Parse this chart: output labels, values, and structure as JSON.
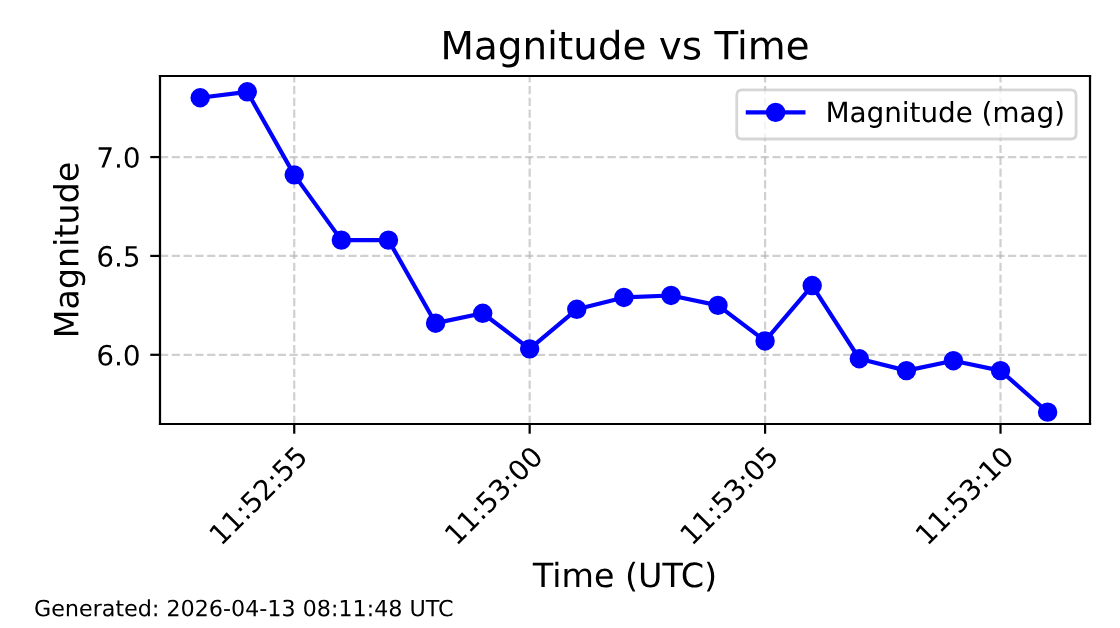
{
  "chart_data": {
    "type": "line",
    "title": "Magnitude vs Time",
    "xlabel": "Time (UTC)",
    "ylabel": "Magnitude",
    "x": [
      11.881389,
      11.881667,
      11.881944,
      11.882222,
      11.8825,
      11.882778,
      11.883056,
      11.883333,
      11.883611,
      11.883889,
      11.884167,
      11.884444,
      11.884722,
      11.885,
      11.885278,
      11.885556,
      11.885833,
      11.886111,
      11.886389
    ],
    "series": [
      {
        "name": "Magnitude (mag)",
        "color": "#0000ff",
        "values": [
          7.3,
          7.33,
          6.91,
          6.58,
          6.58,
          6.16,
          6.21,
          6.03,
          6.23,
          6.29,
          6.3,
          6.25,
          6.07,
          6.35,
          5.98,
          5.92,
          5.97,
          5.92,
          5.71
        ]
      }
    ],
    "xlim": [
      11.881152,
      11.886639
    ],
    "ylim": [
      5.65,
      7.41
    ],
    "xticks": [
      {
        "value": 11.881944,
        "label": "11:52:55"
      },
      {
        "value": 11.883333,
        "label": "11:53:00"
      },
      {
        "value": 11.884722,
        "label": "11:53:05"
      },
      {
        "value": 11.886111,
        "label": "11:53:10"
      }
    ],
    "yticks": [
      {
        "value": 6.0,
        "label": "6.0"
      },
      {
        "value": 6.5,
        "label": "6.5"
      },
      {
        "value": 7.0,
        "label": "7.0"
      }
    ],
    "grid": true,
    "legend": "top right",
    "marker": "circle",
    "line_style": "solid",
    "annotations": [
      "Generated: 2026-04-13 08:11:48 UTC"
    ]
  }
}
